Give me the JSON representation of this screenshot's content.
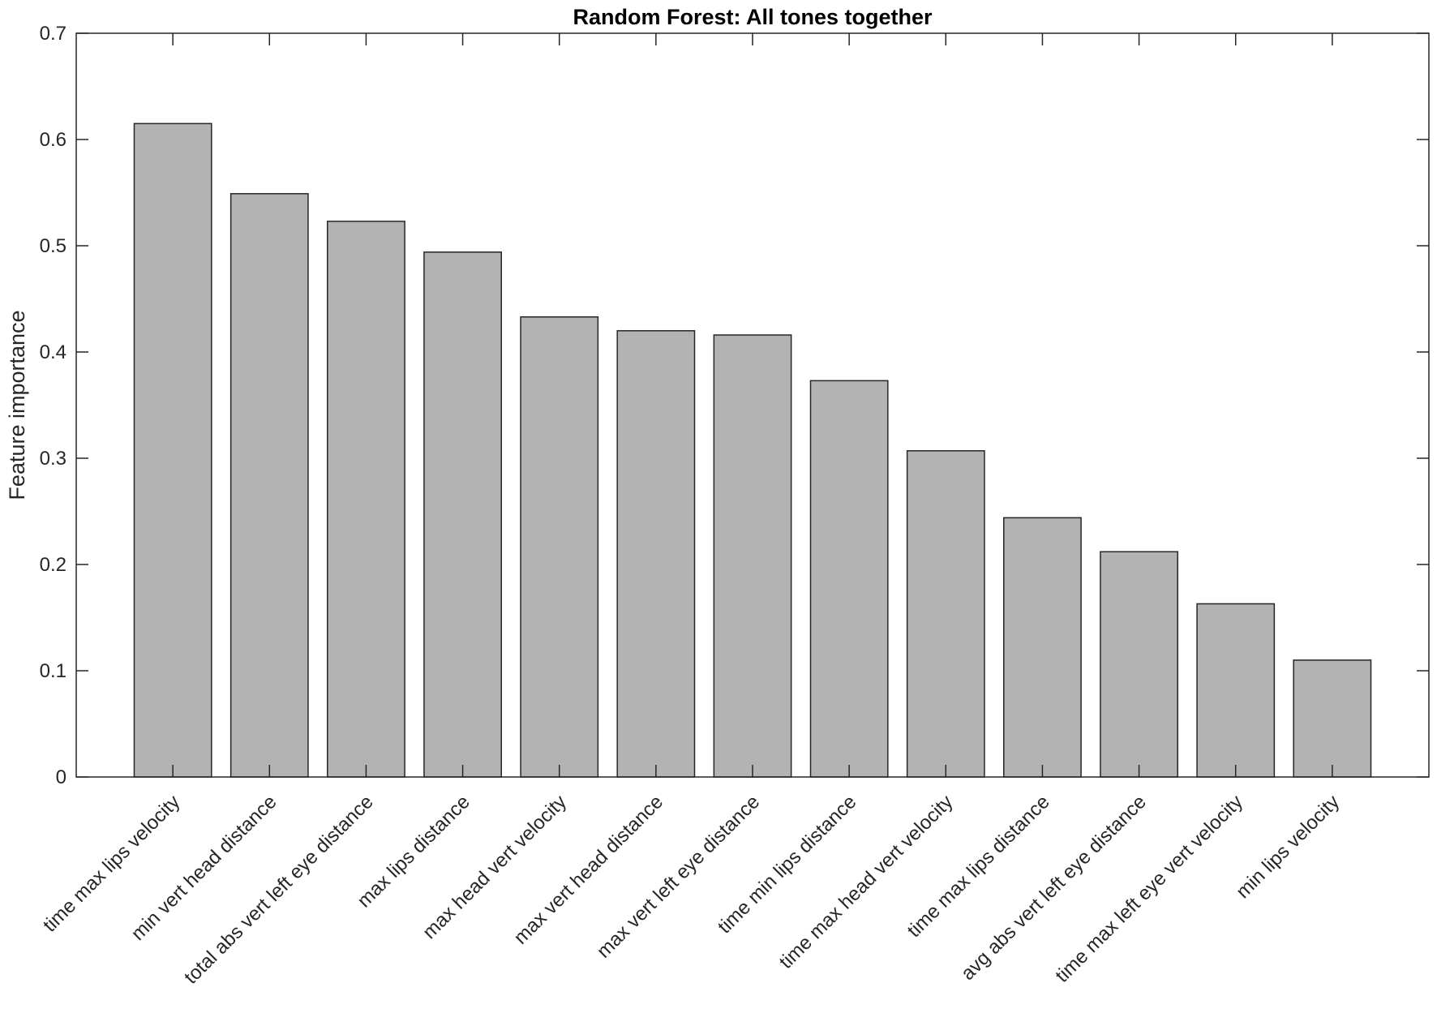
{
  "chart_data": {
    "type": "bar",
    "title": "Random Forest: All tones together",
    "xlabel": "",
    "ylabel": "Feature importance",
    "ylim": [
      0,
      0.7
    ],
    "yticks": [
      "0",
      "0.1",
      "0.2",
      "0.3",
      "0.4",
      "0.5",
      "0.6",
      "0.7"
    ],
    "yticks_values": [
      0,
      0.1,
      0.2,
      0.3,
      0.4,
      0.5,
      0.6,
      0.7
    ],
    "categories": [
      "time max lips velocity",
      "min vert head distance",
      "total abs vert left eye distance",
      "max lips distance",
      "max head vert velocity",
      "max vert head distance",
      "max vert left eye distance",
      "time min lips distance",
      "time max head vert velocity",
      "time max lips distance",
      "avg abs vert left eye distance",
      "time max left eye vert velocity",
      "min lips velocity"
    ],
    "values": [
      0.615,
      0.549,
      0.523,
      0.494,
      0.433,
      0.42,
      0.416,
      0.373,
      0.307,
      0.244,
      0.212,
      0.163,
      0.11
    ],
    "bar_color": "#b3b3b3",
    "grid": false,
    "legend": "none"
  }
}
